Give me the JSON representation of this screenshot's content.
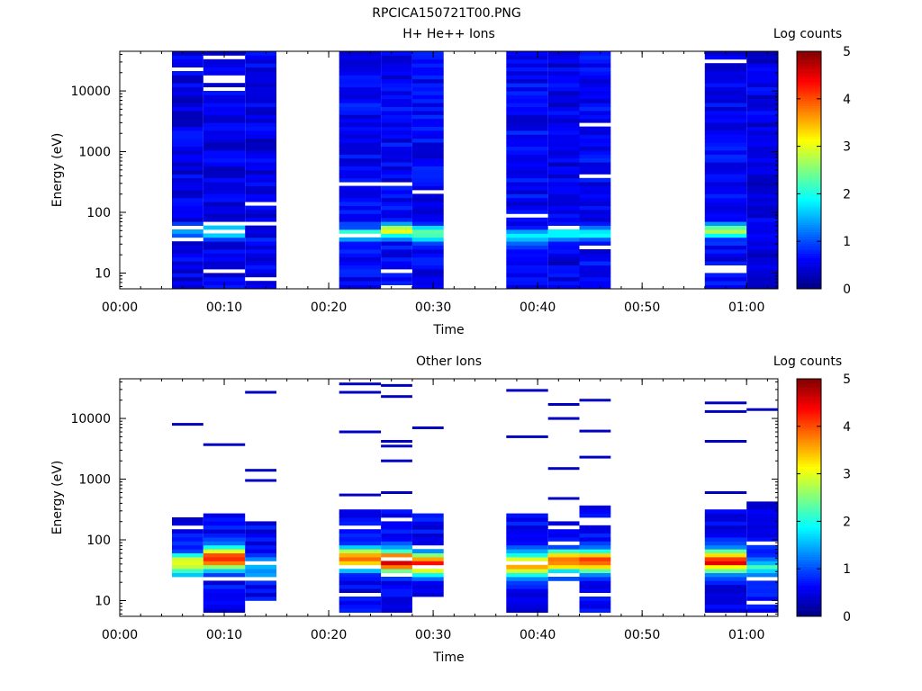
{
  "figure_title": "RPCICA150721T00.PNG",
  "chart_data": [
    {
      "type": "heatmap",
      "title": "H+ He++ Ions",
      "xlabel": "Time",
      "ylabel": "Energy (eV)",
      "xscale": "time",
      "yscale": "log",
      "xlim": [
        "00:00",
        "01:03"
      ],
      "ylim": [
        5.5,
        45000
      ],
      "xticks": [
        "00:00",
        "00:10",
        "00:20",
        "00:30",
        "00:40",
        "00:50",
        "01:00"
      ],
      "yticks": [
        "10",
        "100",
        "1000",
        "10000"
      ],
      "colorbar": {
        "label": "Log counts",
        "range": [
          0,
          5
        ],
        "ticks": [
          "0",
          "1",
          "2",
          "3",
          "4",
          "5"
        ],
        "colormap": "jet"
      },
      "time_columns": [
        {
          "start": "00:05",
          "end": "00:08"
        },
        {
          "start": "00:08",
          "end": "00:12"
        },
        {
          "start": "00:12",
          "end": "00:15"
        },
        {
          "start": "00:21",
          "end": "00:25"
        },
        {
          "start": "00:25",
          "end": "00:28"
        },
        {
          "start": "00:28",
          "end": "00:31"
        },
        {
          "start": "00:37",
          "end": "00:41"
        },
        {
          "start": "00:41",
          "end": "00:44"
        },
        {
          "start": "00:44",
          "end": "00:47"
        },
        {
          "start": "00:56",
          "end": "01:00"
        },
        {
          "start": "01:00",
          "end": "01:03"
        }
      ],
      "energy_profiles": [
        {
          "column": 0,
          "peak_ev": 50,
          "peak_log_counts": 1.2,
          "background_log_counts": 0.5
        },
        {
          "column": 1,
          "peak_ev": 50,
          "peak_log_counts": 2.0,
          "background_log_counts": 0.5
        },
        {
          "column": 2,
          "peak_ev": 35,
          "peak_log_counts": 0.6,
          "background_log_counts": 0.5
        },
        {
          "column": 3,
          "peak_ev": 45,
          "peak_log_counts": 2.0,
          "background_log_counts": 0.6
        },
        {
          "column": 4,
          "peak_ev": 50,
          "peak_log_counts": 3.0,
          "background_log_counts": 0.6
        },
        {
          "column": 5,
          "peak_ev": 45,
          "peak_log_counts": 2.6,
          "background_log_counts": 0.6
        },
        {
          "column": 6,
          "peak_ev": 40,
          "peak_log_counts": 1.8,
          "background_log_counts": 0.6
        },
        {
          "column": 7,
          "peak_ev": 45,
          "peak_log_counts": 2.0,
          "background_log_counts": 0.5
        },
        {
          "column": 8,
          "peak_ev": 45,
          "peak_log_counts": 2.0,
          "background_log_counts": 0.6
        },
        {
          "column": 9,
          "peak_ev": 50,
          "peak_log_counts": 2.6,
          "background_log_counts": 0.6
        },
        {
          "column": 10,
          "peak_ev": 50,
          "peak_log_counts": 0.7,
          "background_log_counts": 0.5
        }
      ]
    },
    {
      "type": "heatmap",
      "title": "Other Ions",
      "xlabel": "Time",
      "ylabel": "Energy (eV)",
      "xscale": "time",
      "yscale": "log",
      "xlim": [
        "00:00",
        "01:03"
      ],
      "ylim": [
        5.5,
        45000
      ],
      "xticks": [
        "00:00",
        "00:10",
        "00:20",
        "00:30",
        "00:40",
        "00:50",
        "01:00"
      ],
      "yticks": [
        "10",
        "100",
        "1000",
        "10000"
      ],
      "colorbar": {
        "label": "Log counts",
        "range": [
          0,
          5
        ],
        "ticks": [
          "0",
          "1",
          "2",
          "3",
          "4",
          "5"
        ],
        "colormap": "jet"
      },
      "time_columns": [
        {
          "start": "00:05",
          "end": "00:08"
        },
        {
          "start": "00:08",
          "end": "00:12"
        },
        {
          "start": "00:12",
          "end": "00:15"
        },
        {
          "start": "00:21",
          "end": "00:25"
        },
        {
          "start": "00:25",
          "end": "00:28"
        },
        {
          "start": "00:28",
          "end": "00:31"
        },
        {
          "start": "00:37",
          "end": "00:41"
        },
        {
          "start": "00:41",
          "end": "00:44"
        },
        {
          "start": "00:44",
          "end": "00:47"
        },
        {
          "start": "00:56",
          "end": "01:00"
        },
        {
          "start": "01:00",
          "end": "01:03"
        }
      ],
      "energy_profiles": [
        {
          "column": 0,
          "band_ev": [
            20,
            230
          ],
          "peak_ev": 40,
          "peak_log_counts": 3.2,
          "isolated_hits_ev": [
            8000
          ]
        },
        {
          "column": 1,
          "band_ev": [
            6,
            270
          ],
          "peak_ev": 50,
          "peak_log_counts": 4.2,
          "isolated_hits_ev": [
            3700
          ]
        },
        {
          "column": 2,
          "band_ev": [
            9,
            190
          ],
          "peak_ev": 35,
          "peak_log_counts": 1.6,
          "isolated_hits_ev": [
            950,
            1400,
            27000
          ]
        },
        {
          "column": 3,
          "band_ev": [
            6,
            300
          ],
          "peak_ev": 50,
          "peak_log_counts": 4.0,
          "isolated_hits_ev": [
            550,
            6000,
            27000,
            37000
          ]
        },
        {
          "column": 4,
          "band_ev": [
            6,
            320
          ],
          "peak_ev": 45,
          "peak_log_counts": 4.8,
          "isolated_hits_ev": [
            600,
            2000,
            3500,
            4200,
            23000,
            35000
          ]
        },
        {
          "column": 5,
          "band_ev": [
            10,
            270
          ],
          "peak_ev": 40,
          "peak_log_counts": 4.5,
          "isolated_hits_ev": [
            7000
          ]
        },
        {
          "column": 6,
          "band_ev": [
            6,
            380
          ],
          "peak_ev": 40,
          "peak_log_counts": 3.8,
          "isolated_hits_ev": [
            5000,
            29000
          ]
        },
        {
          "column": 7,
          "band_ev": [
            20,
            250
          ],
          "peak_ev": 45,
          "peak_log_counts": 4.0,
          "isolated_hits_ev": [
            480,
            1500,
            10000,
            17000
          ]
        },
        {
          "column": 8,
          "band_ev": [
            6,
            350
          ],
          "peak_ev": 45,
          "peak_log_counts": 4.2,
          "isolated_hits_ev": [
            2300,
            6200,
            20000
          ]
        },
        {
          "column": 9,
          "band_ev": [
            6,
            300
          ],
          "peak_ev": 45,
          "peak_log_counts": 4.4,
          "isolated_hits_ev": [
            600,
            4200,
            13000,
            18000
          ]
        },
        {
          "column": 10,
          "band_ev": [
            6,
            400
          ],
          "peak_ev": 35,
          "peak_log_counts": 2.0,
          "isolated_hits_ev": [
            14000
          ]
        }
      ]
    }
  ]
}
